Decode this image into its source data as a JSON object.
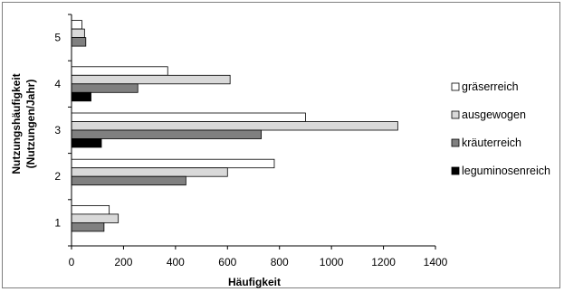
{
  "chart_data": {
    "type": "bar",
    "orientation": "horizontal",
    "categories": [
      "1",
      "2",
      "3",
      "4",
      "5"
    ],
    "series": [
      {
        "name": "gräserreich",
        "color": "#ffffff",
        "values": [
          145,
          780,
          900,
          370,
          40
        ]
      },
      {
        "name": "ausgewogen",
        "color": "#d9d9d9",
        "values": [
          180,
          600,
          1255,
          610,
          50
        ]
      },
      {
        "name": "kräuterreich",
        "color": "#808080",
        "values": [
          125,
          440,
          730,
          255,
          55
        ]
      },
      {
        "name": "leguminosenreich",
        "color": "#000000",
        "values": [
          0,
          0,
          115,
          75,
          0
        ]
      }
    ],
    "xlabel": "Häufigkeit",
    "ylabel_line1": "Nutzungshäufigkeit",
    "ylabel_line2": "(Nutzungen/Jahr)",
    "xlim": [
      0,
      1400
    ],
    "x_ticks": [
      0,
      200,
      400,
      600,
      800,
      1000,
      1200,
      1400
    ],
    "grid": false,
    "legend_position": "right"
  }
}
